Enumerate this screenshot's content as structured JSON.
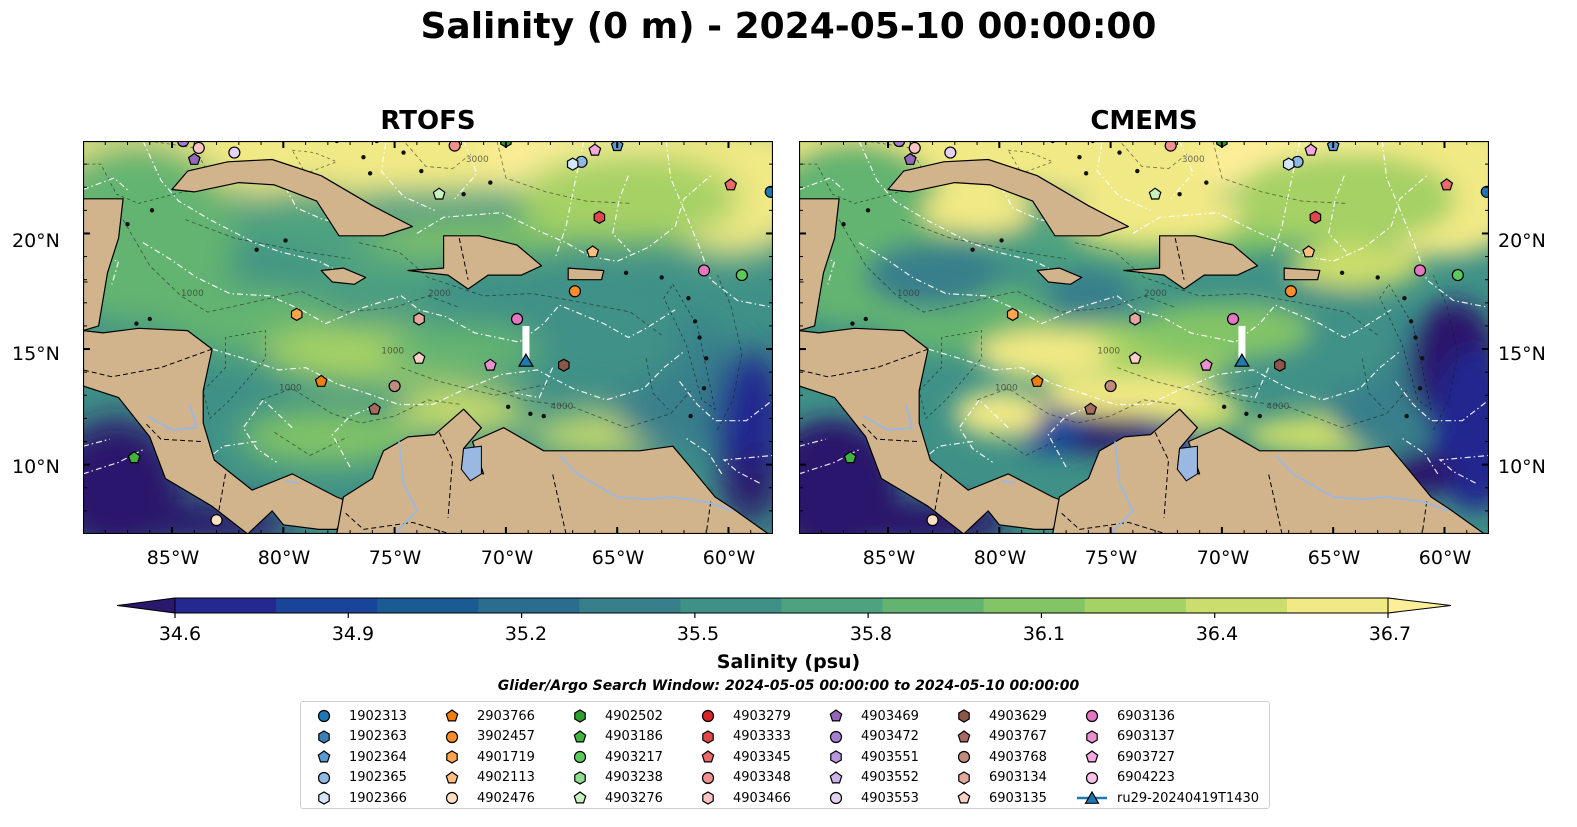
{
  "title": "Salinity (0 m) - 2024-05-10 00:00:00",
  "panels": [
    {
      "title": "RTOFS"
    },
    {
      "title": "CMEMS"
    }
  ],
  "map": {
    "lon_range": [
      -89,
      -58
    ],
    "lat_range": [
      7,
      24
    ],
    "lat_ticks": [
      "20°N",
      "15°N",
      "10°N"
    ],
    "lon_ticks": [
      "85°W",
      "80°W",
      "75°W",
      "70°W",
      "65°W",
      "60°W"
    ],
    "land_color": "#d2b48c",
    "contour_labels": [
      "1000",
      "2000",
      "3000",
      "1000",
      "1000",
      "4000"
    ]
  },
  "colorbar": {
    "label": "Salinity (psu)",
    "min": 34.6,
    "max": 36.7,
    "colormap": "haline",
    "ticks": [
      "34.6",
      "34.9",
      "35.2",
      "35.5",
      "35.8",
      "36.1",
      "36.4",
      "36.7"
    ],
    "colors": [
      "#2a186c",
      "#24288f",
      "#18459a",
      "#1a5b93",
      "#2a6d8e",
      "#377f8b",
      "#3f9187",
      "#4ea27f",
      "#64b471",
      "#82c466",
      "#a5d165",
      "#cbdd6c",
      "#f1e985",
      "#fdee99"
    ]
  },
  "search_window": "Glider/Argo Search Window: 2024-05-05 00:00:00 to 2024-05-10 00:00:00",
  "legend": [
    {
      "id": "1902313",
      "marker": "circle",
      "color": "#1f77b4"
    },
    {
      "id": "1902363",
      "marker": "hexagon",
      "color": "#3b7fb8"
    },
    {
      "id": "1902364",
      "marker": "pentagon",
      "color": "#5b9bd5"
    },
    {
      "id": "1902365",
      "marker": "circle",
      "color": "#8fb8e3"
    },
    {
      "id": "1902366",
      "marker": "hexagon",
      "color": "#d4e6f7"
    },
    {
      "id": "2903766",
      "marker": "pentagon",
      "color": "#f07f0e"
    },
    {
      "id": "3902457",
      "marker": "circle",
      "color": "#ff8c28"
    },
    {
      "id": "4901719",
      "marker": "hexagon",
      "color": "#ffa44d"
    },
    {
      "id": "4902113",
      "marker": "pentagon",
      "color": "#ffbf80"
    },
    {
      "id": "4902476",
      "marker": "circle",
      "color": "#ffe0c0"
    },
    {
      "id": "4902502",
      "marker": "hexagon",
      "color": "#2ca02c"
    },
    {
      "id": "4903186",
      "marker": "pentagon",
      "color": "#3fb43f"
    },
    {
      "id": "4903217",
      "marker": "circle",
      "color": "#5cc95c"
    },
    {
      "id": "4903238",
      "marker": "hexagon",
      "color": "#8fdd8f"
    },
    {
      "id": "4903276",
      "marker": "pentagon",
      "color": "#c8f2c0"
    },
    {
      "id": "4903279",
      "marker": "circle",
      "color": "#d62728"
    },
    {
      "id": "4903333",
      "marker": "hexagon",
      "color": "#e04848"
    },
    {
      "id": "4903345",
      "marker": "pentagon",
      "color": "#ea6a6a"
    },
    {
      "id": "4903348",
      "marker": "circle",
      "color": "#f29090"
    },
    {
      "id": "4903466",
      "marker": "hexagon",
      "color": "#fbc4c4"
    },
    {
      "id": "4903469",
      "marker": "pentagon",
      "color": "#9467bd"
    },
    {
      "id": "4903472",
      "marker": "circle",
      "color": "#a77fd0"
    },
    {
      "id": "4903551",
      "marker": "hexagon",
      "color": "#b998de"
    },
    {
      "id": "4903552",
      "marker": "pentagon",
      "color": "#ccb3ea"
    },
    {
      "id": "4903553",
      "marker": "circle",
      "color": "#e2d2f5"
    },
    {
      "id": "4903629",
      "marker": "hexagon",
      "color": "#8c564b"
    },
    {
      "id": "4903767",
      "marker": "pentagon",
      "color": "#a56b5e"
    },
    {
      "id": "4903768",
      "marker": "circle",
      "color": "#c08a7d"
    },
    {
      "id": "6903134",
      "marker": "hexagon",
      "color": "#e3a89b"
    },
    {
      "id": "6903135",
      "marker": "pentagon",
      "color": "#f8d2c6"
    },
    {
      "id": "6903136",
      "marker": "circle",
      "color": "#e377c2"
    },
    {
      "id": "6903137",
      "marker": "hexagon",
      "color": "#ea8fcf"
    },
    {
      "id": "6903727",
      "marker": "pentagon",
      "color": "#f3a9dd"
    },
    {
      "id": "6904223",
      "marker": "circle",
      "color": "#f8c2e8"
    },
    {
      "id": "ru29-20240419T1430",
      "marker": "triangle",
      "color": "#1f77b4"
    }
  ],
  "markers": [
    {
      "lon": -84.5,
      "lat": 24.0,
      "marker": "circle",
      "color": "#a77fd0"
    },
    {
      "lon": -83.8,
      "lat": 23.7,
      "marker": "circle",
      "color": "#fbc4c4"
    },
    {
      "lon": -84.0,
      "lat": 23.2,
      "marker": "pentagon",
      "color": "#9467bd"
    },
    {
      "lon": -82.2,
      "lat": 23.5,
      "marker": "circle",
      "color": "#e2d2f5"
    },
    {
      "lon": -72.3,
      "lat": 23.8,
      "marker": "circle",
      "color": "#f29090"
    },
    {
      "lon": -70.0,
      "lat": 24.0,
      "marker": "hexagon",
      "color": "#2ca02c"
    },
    {
      "lon": -66.0,
      "lat": 23.6,
      "marker": "pentagon",
      "color": "#f3a9dd"
    },
    {
      "lon": -65.0,
      "lat": 23.8,
      "marker": "pentagon",
      "color": "#5b9bd5"
    },
    {
      "lon": -66.6,
      "lat": 23.1,
      "marker": "circle",
      "color": "#8fb8e3"
    },
    {
      "lon": -67.0,
      "lat": 23.0,
      "marker": "hexagon",
      "color": "#d4e6f7"
    },
    {
      "lon": -59.9,
      "lat": 22.1,
      "marker": "pentagon",
      "color": "#ea6a6a"
    },
    {
      "lon": -58.1,
      "lat": 21.8,
      "marker": "circle",
      "color": "#1f77b4"
    },
    {
      "lon": -73.0,
      "lat": 21.7,
      "marker": "pentagon",
      "color": "#c8f2c0"
    },
    {
      "lon": -65.8,
      "lat": 20.7,
      "marker": "hexagon",
      "color": "#e04848"
    },
    {
      "lon": -66.1,
      "lat": 19.2,
      "marker": "pentagon",
      "color": "#ffbf80"
    },
    {
      "lon": -61.1,
      "lat": 18.4,
      "marker": "circle",
      "color": "#e377c2"
    },
    {
      "lon": -59.4,
      "lat": 18.2,
      "marker": "circle",
      "color": "#5cc95c"
    },
    {
      "lon": -66.9,
      "lat": 17.5,
      "marker": "circle",
      "color": "#ff8c28"
    },
    {
      "lon": -79.4,
      "lat": 16.5,
      "marker": "hexagon",
      "color": "#ffa44d"
    },
    {
      "lon": -73.9,
      "lat": 16.3,
      "marker": "hexagon",
      "color": "#e3a89b"
    },
    {
      "lon": -69.5,
      "lat": 16.3,
      "marker": "circle",
      "color": "#e377c2"
    },
    {
      "lon": -73.9,
      "lat": 14.6,
      "marker": "pentagon",
      "color": "#f8d2c6"
    },
    {
      "lon": -70.7,
      "lat": 14.3,
      "marker": "pentagon",
      "color": "#ea8fcf"
    },
    {
      "lon": -67.4,
      "lat": 14.3,
      "marker": "hexagon",
      "color": "#8c564b"
    },
    {
      "lon": -78.3,
      "lat": 13.6,
      "marker": "pentagon",
      "color": "#f07f0e"
    },
    {
      "lon": -75.0,
      "lat": 13.4,
      "marker": "circle",
      "color": "#c08a7d"
    },
    {
      "lon": -75.9,
      "lat": 12.4,
      "marker": "pentagon",
      "color": "#a56b5e"
    },
    {
      "lon": -86.7,
      "lat": 10.3,
      "marker": "pentagon",
      "color": "#3fb43f"
    },
    {
      "lon": -83.0,
      "lat": 7.6,
      "marker": "circle",
      "color": "#ffe0c0"
    }
  ],
  "glider": {
    "lon": -69.1,
    "lat": 14.5,
    "track_top_lat": 16.0
  }
}
